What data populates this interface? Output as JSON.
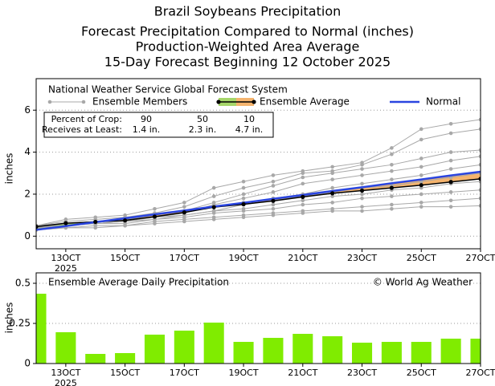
{
  "chart_data": [
    {
      "type": "line",
      "title": "Brazil Soybeans Precipitation",
      "subtitle": [
        "Forecast Precipitation Compared to Normal (inches)",
        "Production-Weighted Area Average",
        "15-Day Forecast Beginning 12 October 2025"
      ],
      "legend_title": "National Weather Service Global Forecast System",
      "ylabel": "inches",
      "x": [
        12,
        13,
        14,
        15,
        16,
        17,
        18,
        19,
        20,
        21,
        22,
        23,
        24,
        25,
        26,
        27
      ],
      "xlim": [
        12,
        27
      ],
      "xticks": [
        {
          "value": 13,
          "label": "13OCT"
        },
        {
          "value": 15,
          "label": "15OCT"
        },
        {
          "value": 17,
          "label": "17OCT"
        },
        {
          "value": 19,
          "label": "19OCT"
        },
        {
          "value": 21,
          "label": "21OCT"
        },
        {
          "value": 23,
          "label": "23OCT"
        },
        {
          "value": 25,
          "label": "25OCT"
        },
        {
          "value": 27,
          "label": "27OCT"
        }
      ],
      "xtick_sublabel": "2025",
      "ylim": [
        -0.6,
        7.5
      ],
      "yticks": [
        0,
        2,
        4,
        6
      ],
      "grid": true,
      "fill_colors": [
        "#a6d66a",
        "#f5b46e"
      ],
      "series": [
        {
          "name": "Ensemble Members",
          "color": "#a8a8a8",
          "members": [
            [
              0.5,
              0.8,
              0.9,
              1.0,
              1.3,
              1.6,
              2.3,
              2.6,
              2.9,
              3.1,
              3.3,
              3.5,
              4.2,
              5.1,
              5.35,
              5.55
            ],
            [
              0.5,
              0.7,
              0.8,
              0.9,
              1.1,
              1.4,
              1.9,
              2.3,
              2.6,
              3.0,
              3.1,
              3.4,
              3.9,
              4.6,
              4.9,
              5.1
            ],
            [
              0.4,
              0.6,
              0.7,
              0.8,
              1.0,
              1.2,
              1.6,
              2.0,
              2.4,
              2.8,
              3.0,
              3.2,
              3.4,
              3.7,
              4.0,
              4.1
            ],
            [
              0.5,
              0.6,
              0.7,
              0.8,
              0.9,
              1.1,
              1.5,
              1.8,
              2.1,
              2.5,
              2.7,
              2.9,
              3.1,
              3.3,
              3.6,
              3.8
            ],
            [
              0.4,
              0.6,
              0.7,
              0.8,
              1.0,
              1.2,
              1.4,
              1.6,
              1.8,
              2.0,
              2.3,
              2.5,
              2.7,
              2.9,
              3.2,
              3.4
            ],
            [
              0.4,
              0.5,
              0.6,
              0.7,
              0.9,
              1.0,
              1.2,
              1.5,
              1.7,
              1.9,
              2.1,
              2.3,
              2.4,
              2.6,
              2.8,
              3.0
            ],
            [
              0.4,
              0.5,
              0.6,
              0.7,
              0.8,
              1.0,
              1.2,
              1.3,
              1.5,
              1.7,
              1.9,
              2.0,
              2.2,
              2.3,
              2.5,
              2.6
            ],
            [
              0.4,
              0.5,
              0.6,
              0.6,
              0.8,
              0.9,
              1.1,
              1.2,
              1.3,
              1.5,
              1.6,
              1.8,
              1.9,
              2.0,
              2.1,
              2.2
            ],
            [
              0.3,
              0.4,
              0.5,
              0.5,
              0.7,
              0.8,
              0.9,
              1.0,
              1.1,
              1.2,
              1.3,
              1.4,
              1.5,
              1.6,
              1.7,
              1.8
            ],
            [
              0.3,
              0.4,
              0.4,
              0.5,
              0.6,
              0.7,
              0.8,
              0.9,
              1.0,
              1.1,
              1.2,
              1.2,
              1.3,
              1.4,
              1.4,
              1.45
            ]
          ]
        },
        {
          "name": "Ensemble Average",
          "color": "#000000",
          "values": [
            0.45,
            0.62,
            0.68,
            0.75,
            0.93,
            1.13,
            1.38,
            1.52,
            1.68,
            1.87,
            2.04,
            2.17,
            2.3,
            2.43,
            2.58,
            2.73
          ]
        },
        {
          "name": "Normal",
          "color": "#2a45e0",
          "values": [
            0.3,
            0.48,
            0.67,
            0.85,
            1.04,
            1.22,
            1.41,
            1.59,
            1.78,
            1.96,
            2.15,
            2.33,
            2.52,
            2.7,
            2.89,
            3.07
          ]
        }
      ],
      "crop_table": {
        "header": "Percent of Crop:",
        "row_label": "Receives at Least:",
        "percents": [
          90,
          50,
          10
        ],
        "amounts": [
          "1.4 in.",
          "2.3 in.",
          "4.7 in."
        ]
      }
    },
    {
      "type": "bar",
      "title": "Ensemble Average Daily Precipitation",
      "annotation": "© World Ag Weather",
      "ylabel": "inches",
      "x": [
        12,
        13,
        14,
        15,
        16,
        17,
        18,
        19,
        20,
        21,
        22,
        23,
        24,
        25,
        26,
        27
      ],
      "values": [
        0.435,
        0.195,
        0.06,
        0.065,
        0.18,
        0.205,
        0.255,
        0.135,
        0.16,
        0.185,
        0.17,
        0.13,
        0.135,
        0.135,
        0.155,
        0.155
      ],
      "color": "#80ec00",
      "xlim": [
        12,
        27
      ],
      "xticks": [
        {
          "value": 13,
          "label": "13OCT"
        },
        {
          "value": 15,
          "label": "15OCT"
        },
        {
          "value": 17,
          "label": "17OCT"
        },
        {
          "value": 19,
          "label": "19OCT"
        },
        {
          "value": 21,
          "label": "21OCT"
        },
        {
          "value": 23,
          "label": "23OCT"
        },
        {
          "value": 25,
          "label": "25OCT"
        },
        {
          "value": 27,
          "label": "27OCT"
        }
      ],
      "xtick_sublabel": "2025",
      "ylim": [
        0,
        0.565
      ],
      "yticks": [
        0,
        0.25,
        0.5
      ],
      "grid": true
    }
  ]
}
